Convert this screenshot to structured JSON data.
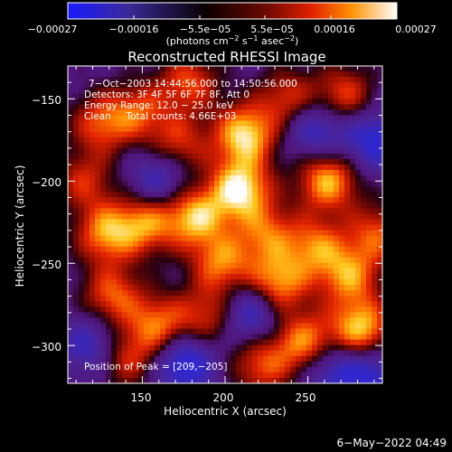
{
  "chart_data": {
    "type": "heatmap",
    "title": "Reconstructed RHESSI Image",
    "xlabel": "Heliocentric X (arcsec)",
    "ylabel": "Heliocentric Y (arcsec)",
    "xlim": [
      105,
      295
    ],
    "ylim": [
      -323,
      -130
    ],
    "xticks": [
      150,
      200,
      250
    ],
    "yticks": [
      -150,
      -200,
      -250,
      -300
    ],
    "xtick_labels": [
      "150",
      "200",
      "250"
    ],
    "ytick_labels": [
      "−150",
      "−200",
      "−250",
      "−300"
    ],
    "colorbar": {
      "range": [
        -0.00027,
        0.00027
      ],
      "tick_labels": [
        "−0.00027",
        "−0.00016",
        "−5.5e−05",
        "5.5e−05",
        "0.00016",
        "0.00027"
      ],
      "units_prefix": "(photons cm",
      "units_sup1": "−2",
      "units_mid": " s",
      "units_sup2": "−1",
      "units_mid2": " asec",
      "units_sup3": "−2",
      "units_suffix": ")"
    },
    "annotations": [
      "7−Oct−2003 14:44:56.000 to 14:50:56.000",
      "Detectors: 3F 4F 5F 6F 7F 8F, Att 0",
      "Energy Range: 12.0 − 25.0 keV",
      "Clean     Total counts: 4.66E+03"
    ],
    "peak_label": "Position of Peak = [209,−205]",
    "peak": [
      209,
      -205
    ],
    "blobs": [
      {
        "x": 209,
        "y": -205,
        "v": 1.0
      },
      {
        "x": 212,
        "y": -172,
        "v": 0.95
      },
      {
        "x": 262,
        "y": -200,
        "v": 0.85
      },
      {
        "x": 282,
        "y": -290,
        "v": 0.9
      },
      {
        "x": 248,
        "y": -298,
        "v": 0.75
      },
      {
        "x": 232,
        "y": -262,
        "v": 0.8
      },
      {
        "x": 182,
        "y": -222,
        "v": 0.85
      },
      {
        "x": 152,
        "y": -226,
        "v": 0.7
      },
      {
        "x": 128,
        "y": -232,
        "v": 0.75
      },
      {
        "x": 275,
        "y": -258,
        "v": 0.7
      },
      {
        "x": 255,
        "y": -240,
        "v": 0.65
      },
      {
        "x": 198,
        "y": -250,
        "v": 0.7
      },
      {
        "x": 160,
        "y": -288,
        "v": 0.7
      },
      {
        "x": 132,
        "y": -270,
        "v": 0.65
      },
      {
        "x": 125,
        "y": -165,
        "v": 0.6
      },
      {
        "x": 238,
        "y": -150,
        "v": 0.55
      },
      {
        "x": 178,
        "y": -140,
        "v": 0.6
      },
      {
        "x": 148,
        "y": -158,
        "v": 0.55
      },
      {
        "x": 222,
        "y": -312,
        "v": 0.6
      },
      {
        "x": 140,
        "y": -308,
        "v": 0.55
      },
      {
        "x": 272,
        "y": -148,
        "v": 0.6
      },
      {
        "x": 292,
        "y": -232,
        "v": 0.6
      },
      {
        "x": 172,
        "y": -178,
        "v": 0.55
      },
      {
        "x": 115,
        "y": -200,
        "v": 0.5
      },
      {
        "x": 225,
        "y": -232,
        "v": 0.6
      },
      {
        "x": 190,
        "y": -282,
        "v": 0.55
      },
      {
        "x": 215,
        "y": -280,
        "v": -0.6
      },
      {
        "x": 175,
        "y": -310,
        "v": -0.7
      },
      {
        "x": 265,
        "y": -315,
        "v": -0.5
      },
      {
        "x": 290,
        "y": -175,
        "v": -0.6
      },
      {
        "x": 120,
        "y": -300,
        "v": -0.5
      },
      {
        "x": 255,
        "y": -168,
        "v": -0.55
      },
      {
        "x": 160,
        "y": -198,
        "v": -0.5
      },
      {
        "x": 290,
        "y": -318,
        "v": -0.5
      }
    ]
  },
  "footer": {
    "timestamp": "6−May−2022 04:49"
  }
}
